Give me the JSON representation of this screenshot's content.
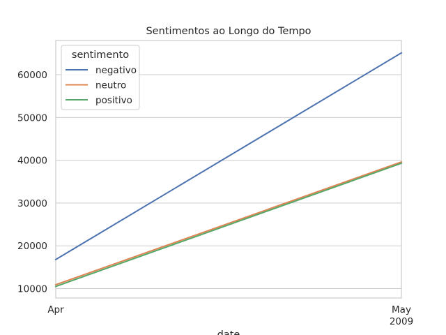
{
  "chart_data": {
    "type": "line",
    "title": "Sentimentos ao Longo do Tempo",
    "xlabel": "date",
    "ylabel": "",
    "x": [
      "Apr",
      "May"
    ],
    "x_tick_labels": [
      {
        "label": "Apr",
        "sub": ""
      },
      {
        "label": "May",
        "sub": "2009"
      }
    ],
    "ylim": [
      7800,
      68000
    ],
    "y_ticks": [
      10000,
      20000,
      30000,
      40000,
      50000,
      60000
    ],
    "grid": true,
    "legend": {
      "title": "sentimento",
      "placement": "top-left"
    },
    "series": [
      {
        "name": "negativo",
        "color": "#4c72b0",
        "values": [
          16800,
          65100
        ]
      },
      {
        "name": "neutro",
        "color": "#dd8452",
        "values": [
          10900,
          39600
        ]
      },
      {
        "name": "positivo",
        "color": "#55a868",
        "values": [
          10500,
          39300
        ]
      }
    ]
  }
}
